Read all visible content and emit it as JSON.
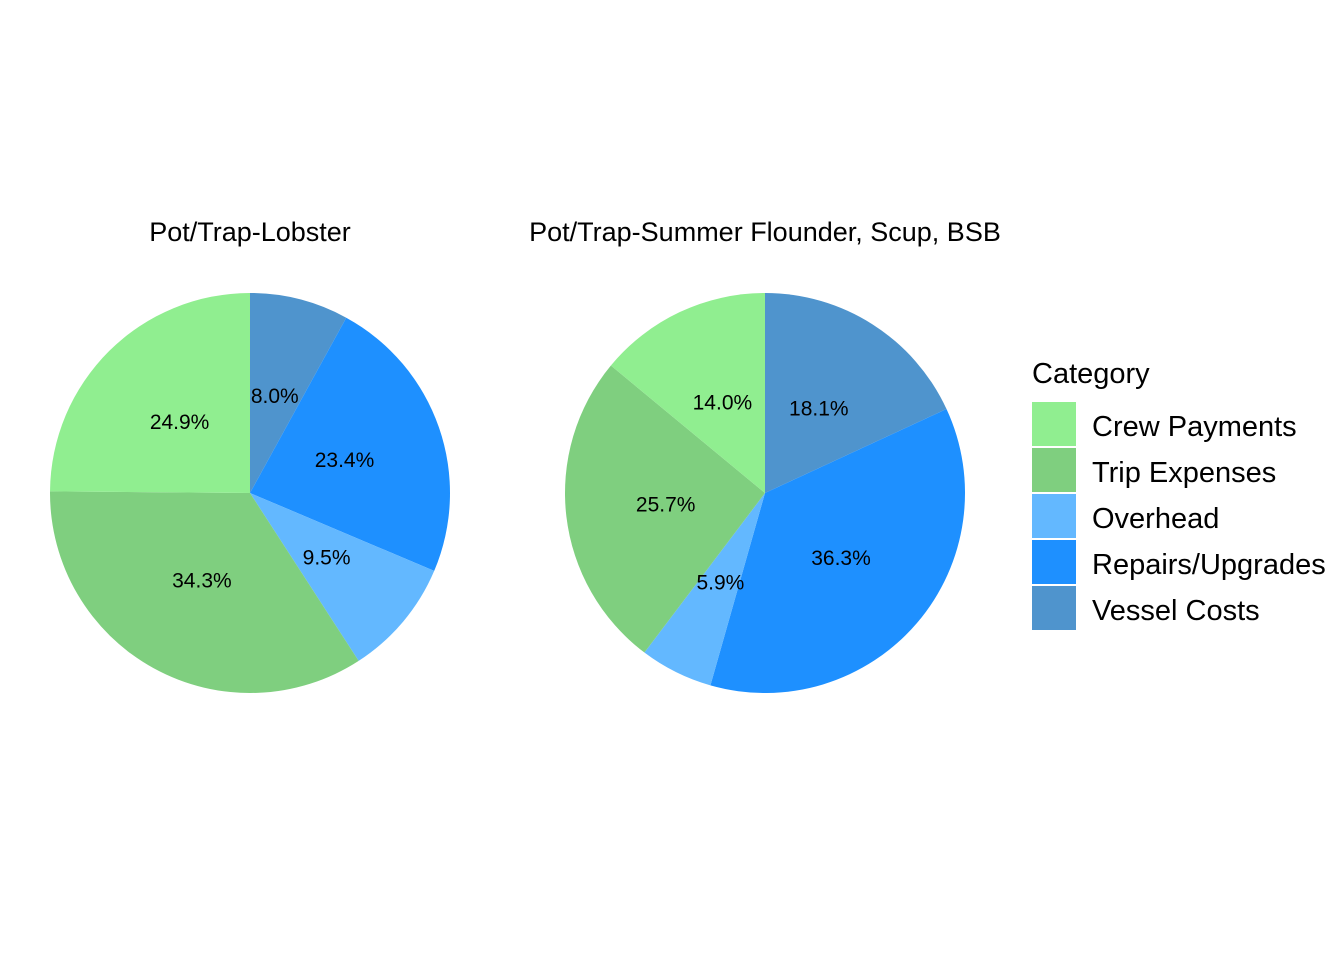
{
  "legend": {
    "title": "Category",
    "position": "right",
    "items": [
      {
        "key": "crew",
        "label": "Crew Payments",
        "color": "#90EE90"
      },
      {
        "key": "trip",
        "label": "Trip Expenses",
        "color": "#7FCF7F"
      },
      {
        "key": "overhead",
        "label": "Overhead",
        "color": "#63B8FF"
      },
      {
        "key": "repairs",
        "label": "Repairs/Upgrades",
        "color": "#1E90FF"
      },
      {
        "key": "vessel",
        "label": "Vessel Costs",
        "color": "#4F94CD"
      }
    ]
  },
  "chart_data": [
    {
      "type": "pie",
      "title": "Pot/Trap-Lobster",
      "slices": [
        {
          "category": "Vessel Costs",
          "value": 8.0,
          "label": "8.0%"
        },
        {
          "category": "Repairs/Upgrades",
          "value": 23.4,
          "label": "23.4%"
        },
        {
          "category": "Overhead",
          "value": 9.5,
          "label": "9.5%"
        },
        {
          "category": "Trip Expenses",
          "value": 34.3,
          "label": "34.3%"
        },
        {
          "category": "Crew Payments",
          "value": 24.9,
          "label": "24.9%"
        }
      ]
    },
    {
      "type": "pie",
      "title": "Pot/Trap-Summer Flounder, Scup, BSB",
      "slices": [
        {
          "category": "Vessel Costs",
          "value": 18.1,
          "label": "18.1%"
        },
        {
          "category": "Repairs/Upgrades",
          "value": 36.3,
          "label": "36.3%"
        },
        {
          "category": "Overhead",
          "value": 5.9,
          "label": "5.9%"
        },
        {
          "category": "Trip Expenses",
          "value": 25.7,
          "label": "25.7%"
        },
        {
          "category": "Crew Payments",
          "value": 14.0,
          "label": "14.0%"
        }
      ]
    }
  ]
}
